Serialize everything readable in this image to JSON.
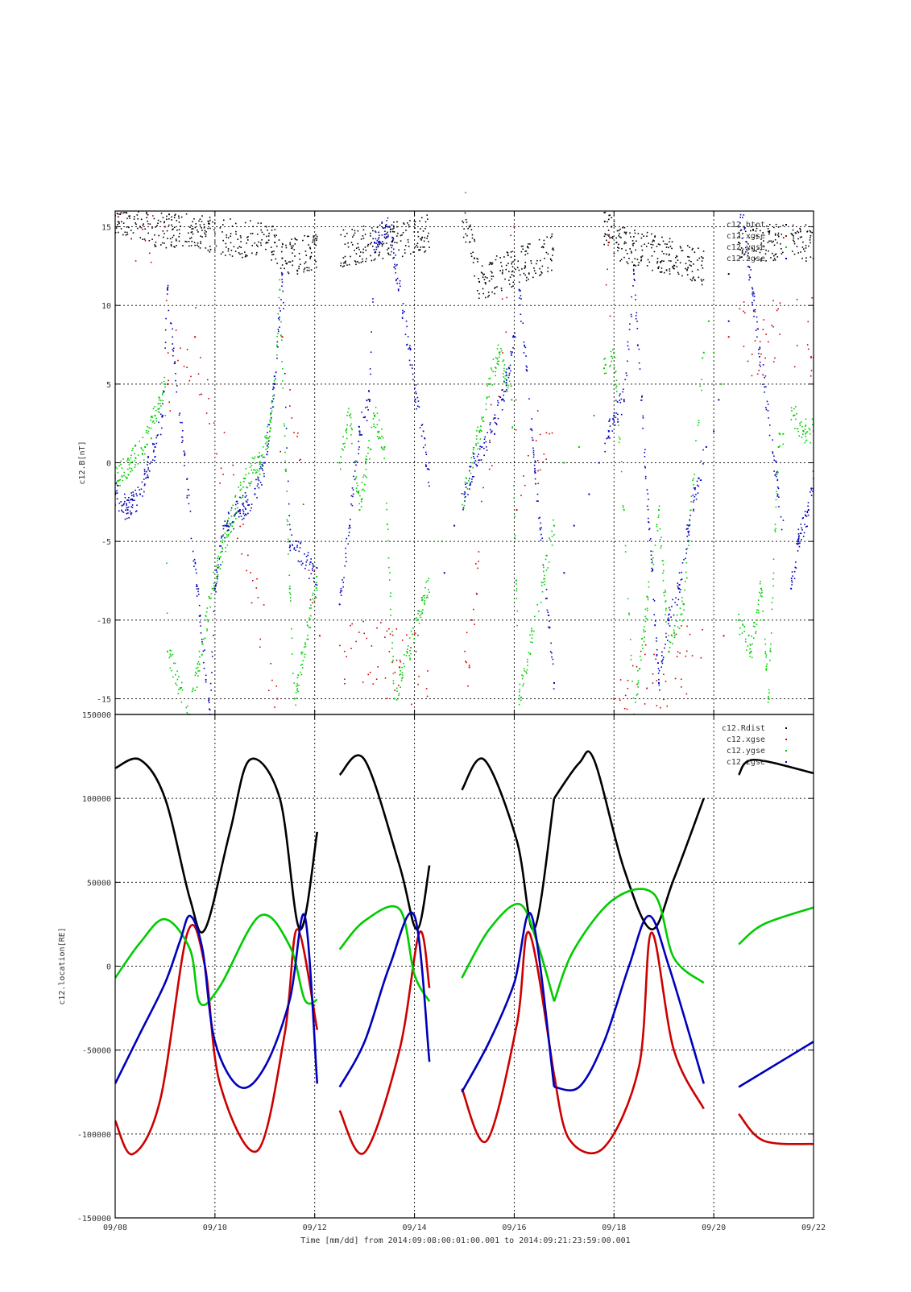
{
  "title": "-",
  "xlabel": "Time [mm/dd]  from 2014:09:08:00:01:00.001  to  2014:09:21:23:59:00.001",
  "x_ticks": [
    "09/08",
    "09/10",
    "09/12",
    "09/14",
    "09/16",
    "09/18",
    "09/20",
    "09/22"
  ],
  "colors": {
    "black": "#000000",
    "red": "#cc0000",
    "green": "#00cc00",
    "blue": "#0000bb"
  },
  "chart_data": [
    {
      "type": "scatter",
      "title": "-",
      "ylabel": "c12.B[nT]",
      "xlim": [
        "09/08",
        "09/22"
      ],
      "ylim": [
        -16,
        16
      ],
      "y_ticks": [
        "15",
        "10",
        "5",
        "0",
        "-5",
        "-10",
        "-15"
      ],
      "y_tick_values": [
        15,
        10,
        5,
        0,
        -5,
        -10,
        -15
      ],
      "grid": true,
      "legend_position": "top-right",
      "x_unit": "days from 09/08",
      "data_gaps": [
        [
          4.05,
          4.5
        ],
        [
          6.3,
          6.95
        ],
        [
          8.8,
          9.8
        ],
        [
          11.8,
          12.5
        ],
        [
          13.4,
          13.55
        ]
      ],
      "series": [
        {
          "name": "c12.btot",
          "color": "#000000",
          "x": [
            0.1,
            0.5,
            3.2,
            3.35,
            7.1,
            7.2,
            7.3,
            9.95,
            10.05,
            12.3,
            12.5
          ],
          "y": [
            15.8,
            15,
            14,
            13,
            15,
            13,
            11.5,
            15,
            14,
            12,
            14
          ]
        },
        {
          "name": "c12.xgse",
          "color": "#cc0000",
          "x": [
            1.0,
            1.05,
            1.6,
            3.25,
            3.35,
            4.1,
            5.7,
            7.1,
            7.15,
            8.0,
            8.05,
            9.9,
            10.0,
            12.2,
            12.3
          ],
          "y": [
            15,
            5,
            8,
            -15,
            8,
            -11,
            -13,
            -13,
            -10,
            15,
            -3,
            14,
            -15,
            -11,
            8
          ]
        },
        {
          "name": "c12.ygse",
          "color": "#00cc00",
          "x": [
            0,
            0.3,
            0.6,
            0.8,
            1.0,
            1.05,
            1.5,
            1.95,
            2.2,
            2.6,
            2.9,
            3.1,
            3.2,
            3.3,
            3.5,
            3.6,
            4.5,
            4.7,
            4.9,
            5.2,
            5.4,
            5.6,
            6.55,
            7.0,
            7.3,
            7.5,
            7.7,
            7.95,
            8.1,
            8.8,
            9.0,
            9.3,
            9.6,
            9.8,
            10.0,
            10.2,
            10.4,
            10.9,
            11.1,
            11.4,
            11.8,
            11.9,
            12.0,
            12.15,
            12.5,
            12.75,
            12.95,
            13.1,
            13.3,
            13.6,
            13.8,
            14.0
          ],
          "y": [
            -1,
            0,
            1,
            3,
            5,
            -12,
            -16,
            -8,
            -5,
            -1,
            0,
            2,
            5,
            11,
            -8,
            -15,
            0,
            3,
            -3,
            3,
            1,
            -15,
            -5,
            -2,
            2,
            5,
            7,
            4,
            -15,
            -4,
            0,
            1,
            3,
            6,
            7,
            -3,
            -16,
            -3,
            -12,
            -9,
            7,
            9,
            7,
            5,
            -10,
            -12,
            -8,
            -15,
            1,
            3,
            2,
            2
          ]
        },
        {
          "name": "c12.zgse",
          "color": "#0000bb",
          "x": [
            0,
            0.25,
            0.5,
            0.8,
            0.95,
            1.05,
            1.9,
            2.0,
            2.2,
            2.5,
            2.8,
            3.0,
            3.2,
            3.35,
            3.5,
            4.5,
            4.7,
            4.9,
            5.1,
            5.2,
            5.5,
            6.6,
            6.8,
            7.0,
            7.2,
            7.35,
            7.55,
            7.75,
            7.9,
            8.0,
            8.1,
            8.8,
            9.0,
            9.2,
            9.5,
            9.7,
            9.9,
            10.0,
            10.2,
            10.4,
            10.9,
            11.1,
            11.3,
            11.5,
            11.7,
            11.85,
            12.0,
            12.1,
            12.3,
            12.5,
            12.6,
            13.55,
            13.7,
            13.9,
            14.0
          ],
          "y": [
            -2,
            -3,
            -2,
            1,
            3,
            11,
            -16,
            -8,
            -4,
            -3,
            -2,
            0,
            5,
            12,
            -5,
            -9,
            -4,
            2,
            4,
            14,
            15,
            -7,
            -4,
            -2,
            0,
            1,
            2,
            4,
            6,
            8,
            11,
            -14,
            -7,
            -4,
            -2,
            0,
            2,
            3,
            4,
            12,
            -14,
            -10,
            -8,
            -4,
            -1,
            1,
            2,
            4,
            9,
            15,
            15,
            -8,
            -5,
            -3,
            -1
          ]
        }
      ]
    },
    {
      "type": "line",
      "ylabel": "c12.location[RE]",
      "xlim": [
        "09/08",
        "09/22"
      ],
      "ylim": [
        -150000,
        150000
      ],
      "y_ticks": [
        "150000",
        "100000",
        "50000",
        "0",
        "-50000",
        "-100000",
        "-150000"
      ],
      "y_tick_values": [
        150000,
        100000,
        50000,
        0,
        -50000,
        -100000,
        -150000
      ],
      "grid": true,
      "legend_position": "top-right",
      "x_unit": "days from 09/08",
      "segments": [
        [
          0,
          4.05
        ],
        [
          4.5,
          6.3
        ],
        [
          6.95,
          8.8
        ],
        [
          8.8,
          11.8
        ],
        [
          12.5,
          14.0
        ]
      ],
      "series": [
        {
          "name": "c12.Rdist",
          "color": "#000000",
          "x": [
            0,
            0.5,
            1.0,
            1.5,
            1.8,
            2.3,
            2.7,
            3.3,
            3.7,
            4.05,
            4.5,
            5.0,
            5.7,
            6.05,
            6.3,
            6.95,
            7.4,
            8.05,
            8.4,
            8.8,
            9.3,
            9.6,
            10.2,
            10.75,
            11.2,
            11.8,
            12.5,
            12.8,
            14.0
          ],
          "y": [
            118000,
            123000,
            100000,
            40000,
            22000,
            80000,
            123000,
            100000,
            22000,
            80000,
            114000,
            123000,
            60000,
            22000,
            60000,
            105000,
            123000,
            75000,
            22000,
            100000,
            121000,
            123000,
            58000,
            22000,
            52000,
            100000,
            114000,
            123000,
            115000
          ]
        },
        {
          "name": "c12.xgse",
          "color": "#cc0000",
          "x": [
            0,
            0.35,
            0.9,
            1.45,
            1.8,
            2.1,
            2.85,
            3.4,
            3.65,
            4.05,
            4.5,
            5.0,
            5.7,
            6.1,
            6.3,
            6.95,
            7.45,
            8.05,
            8.3,
            8.8,
            9.1,
            9.8,
            10.5,
            10.75,
            11.2,
            11.8,
            12.5,
            13.0,
            14.0
          ],
          "y": [
            -92000,
            -112000,
            -80000,
            20000,
            0,
            -70000,
            -110000,
            -40000,
            22000,
            -38000,
            -86000,
            -111000,
            -50000,
            20000,
            -13000,
            -73000,
            -104000,
            -35000,
            20000,
            -65000,
            -103000,
            -108000,
            -60000,
            20000,
            -50000,
            -85000,
            -88000,
            -104000,
            -106000
          ]
        },
        {
          "name": "c12.ygse",
          "color": "#00cc00",
          "x": [
            0,
            0.5,
            1.0,
            1.5,
            1.7,
            2.1,
            2.9,
            3.5,
            3.8,
            4.05,
            4.5,
            5.0,
            5.7,
            6.0,
            6.3,
            6.95,
            7.5,
            8.1,
            8.45,
            8.8,
            9.2,
            10.0,
            10.8,
            11.2,
            11.8,
            12.5,
            13.0,
            14.0
          ],
          "y": [
            -7000,
            14000,
            28000,
            10000,
            -22000,
            -12000,
            30000,
            12000,
            -20000,
            -20000,
            10000,
            27000,
            34000,
            -5000,
            -21000,
            -7000,
            22000,
            37000,
            15000,
            -21000,
            10000,
            40000,
            43000,
            5000,
            -10000,
            13000,
            25000,
            35000
          ]
        },
        {
          "name": "c12.zgse",
          "color": "#0000bb",
          "x": [
            0,
            0.5,
            1.0,
            1.3,
            1.5,
            1.75,
            2.0,
            2.5,
            3.0,
            3.5,
            3.8,
            4.05,
            4.5,
            5.0,
            5.5,
            6.0,
            6.3,
            6.95,
            7.5,
            8.0,
            8.35,
            8.8,
            9.3,
            9.8,
            10.3,
            10.7,
            11.1,
            11.8,
            12.5,
            13.0,
            14.0
          ],
          "y": [
            -70000,
            -40000,
            -10000,
            15000,
            30000,
            10000,
            -45000,
            -72000,
            -60000,
            -20000,
            30000,
            -70000,
            -72000,
            -45000,
            0,
            30000,
            -57000,
            -75000,
            -45000,
            -10000,
            30000,
            -72000,
            -72000,
            -45000,
            0,
            30000,
            0,
            -70000,
            -72000,
            -63000,
            -45000
          ]
        }
      ]
    }
  ]
}
